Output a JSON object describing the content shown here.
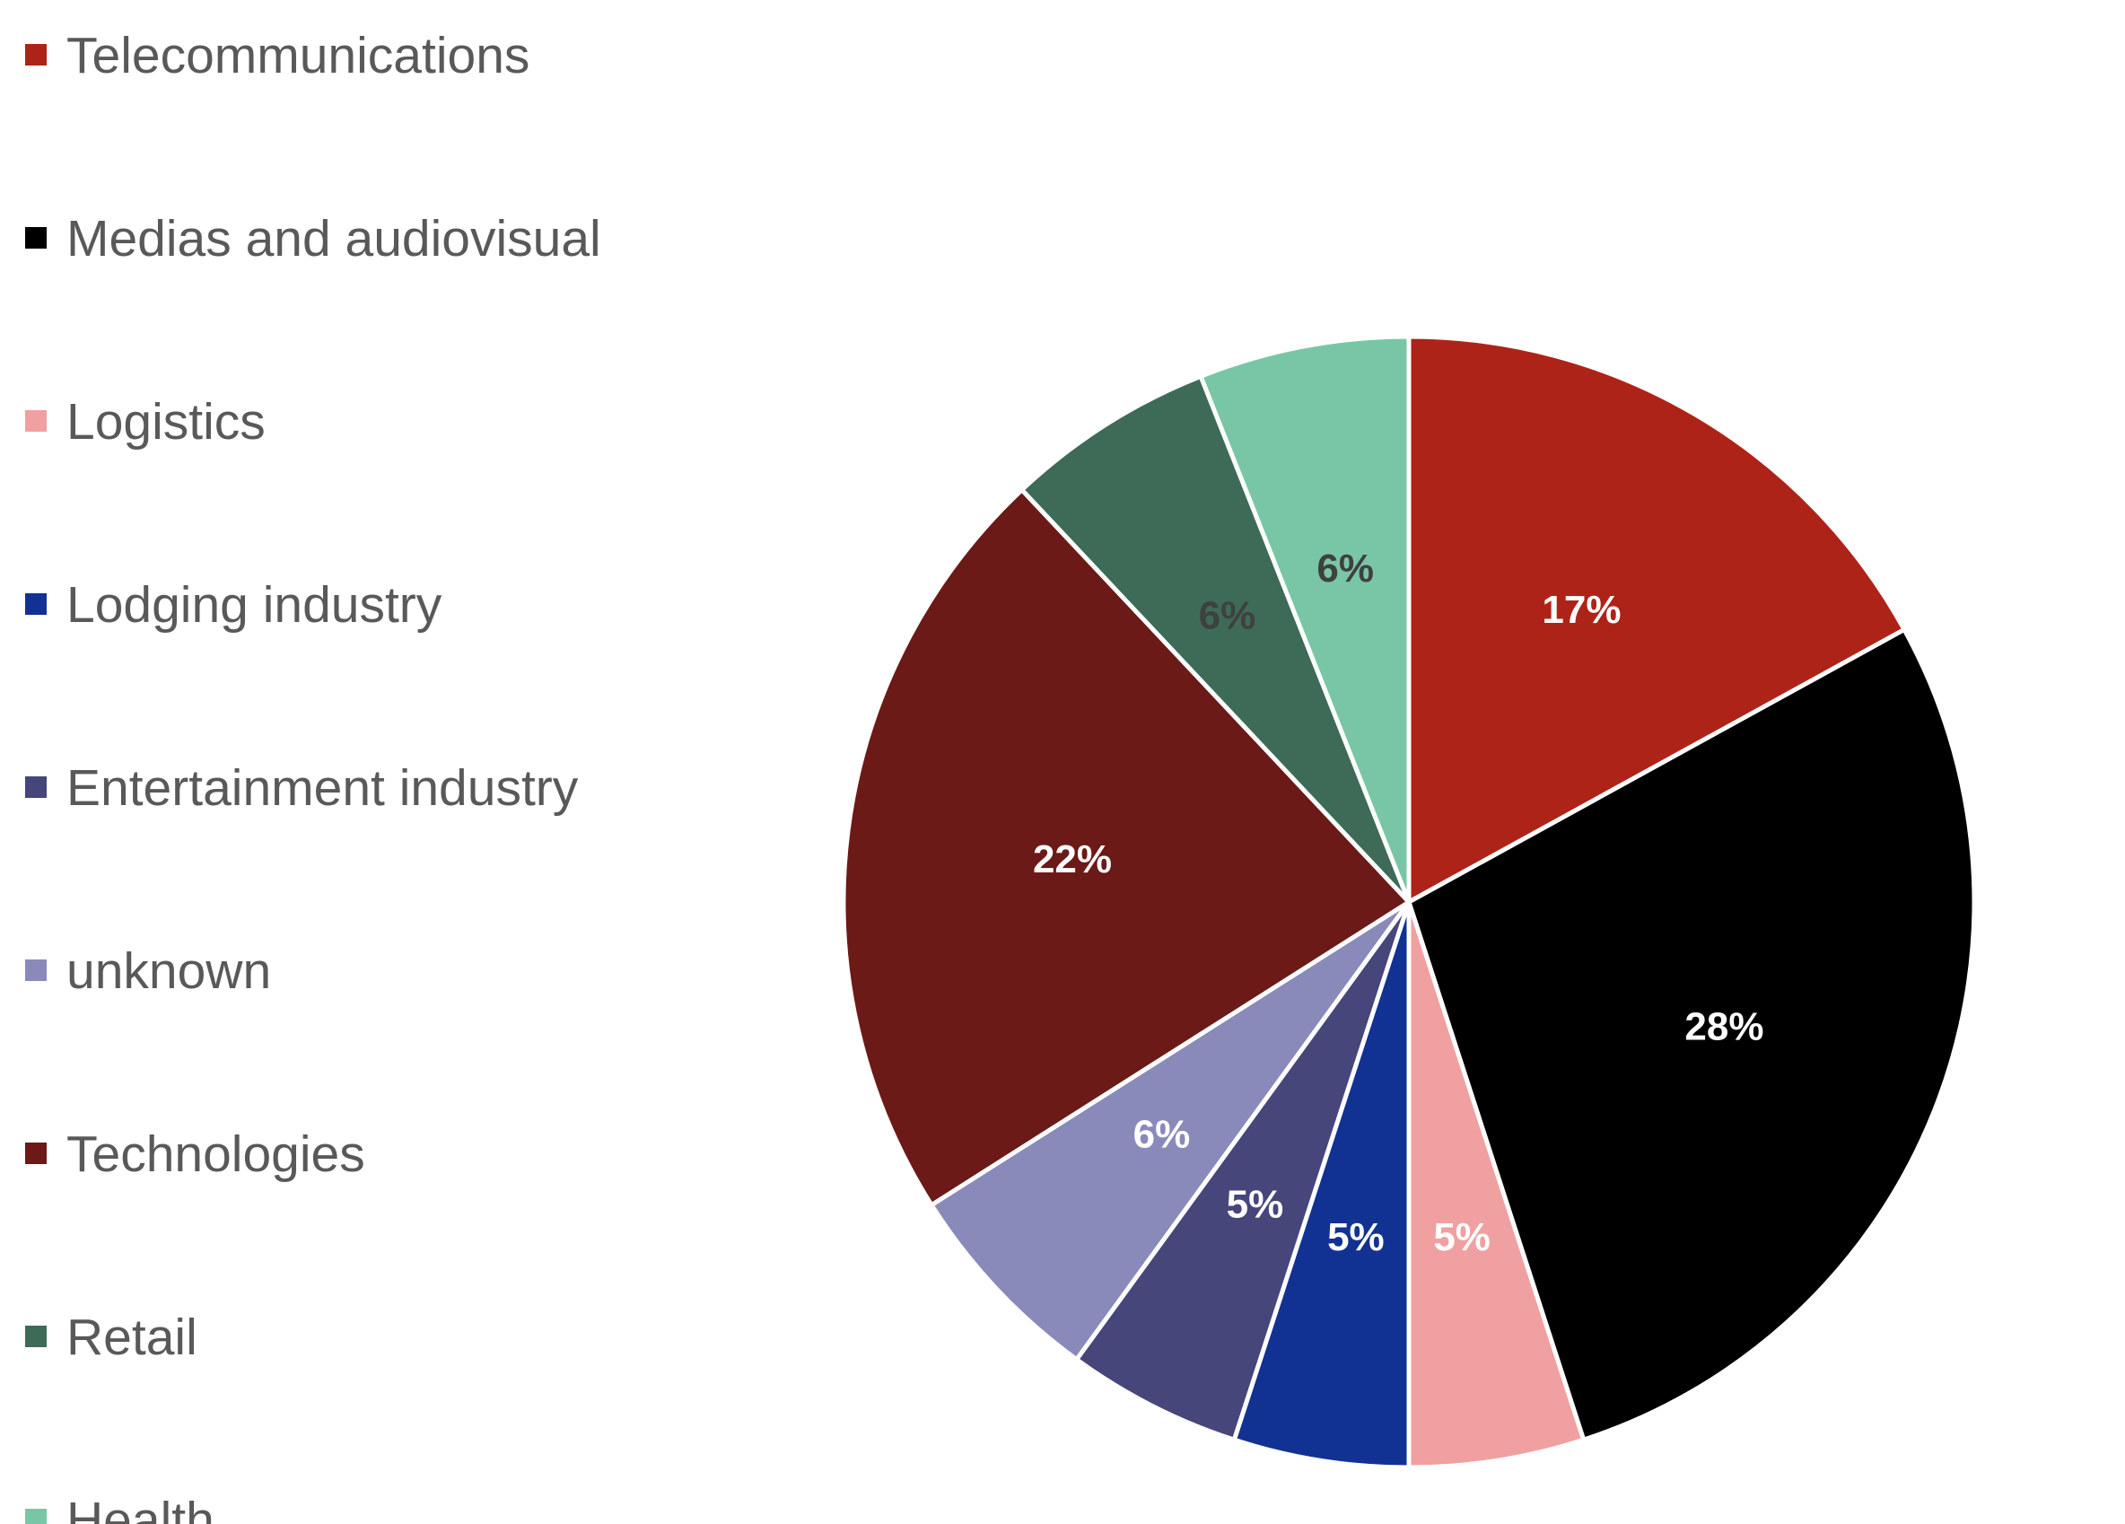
{
  "chart_data": {
    "type": "pie",
    "title": "",
    "legend_position": "left",
    "categories": [
      "Telecommunications",
      "Medias and audiovisual",
      "Logistics",
      "Lodging industry",
      "Entertainment industry",
      "unknown",
      "Technologies",
      "Retail",
      "Health"
    ],
    "values": [
      17,
      28,
      5,
      5,
      5,
      6,
      22,
      6,
      6
    ],
    "data_labels": [
      "17%",
      "28%",
      "5%",
      "5%",
      "5%",
      "6%",
      "22%",
      "6%",
      "6%"
    ],
    "colors": [
      "#AE2318",
      "#000000",
      "#F0A0A0",
      "#123293",
      "#46467A",
      "#8A8ABA",
      "#6B1A17",
      "#3D6B57",
      "#79C6A6"
    ],
    "label_colors": [
      "#FFFFFF",
      "#FFFFFF",
      "#FFFFFF",
      "#FFFFFF",
      "#FFFFFF",
      "#FFFFFF",
      "#FFFFFF",
      "#404040",
      "#404040"
    ]
  }
}
